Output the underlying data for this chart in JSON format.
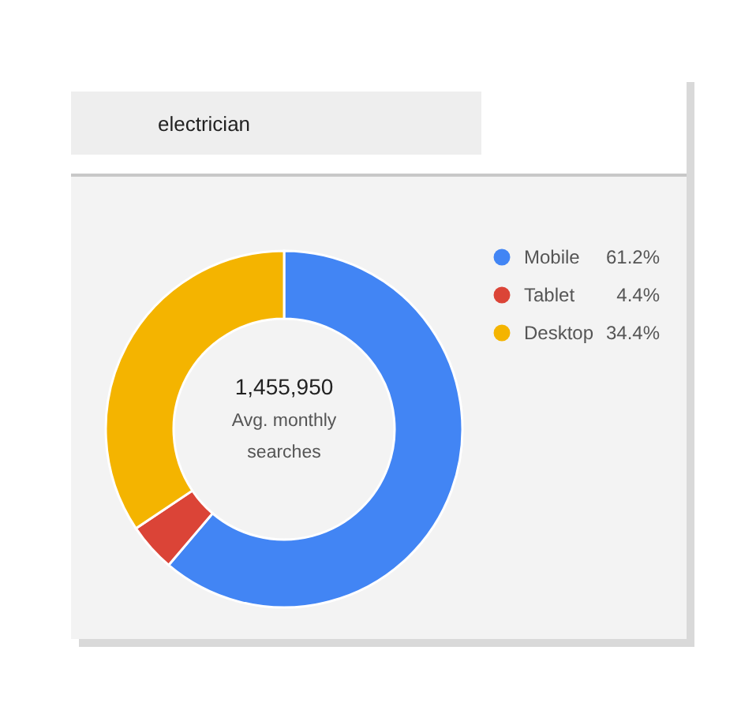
{
  "chart_data": {
    "type": "donut",
    "categories": [
      "Mobile",
      "Tablet",
      "Desktop"
    ],
    "values": [
      61.2,
      4.4,
      34.4
    ],
    "colors": [
      "#4285f4",
      "#db4437",
      "#f4b400"
    ],
    "value_labels": [
      "61.2%",
      "4.4%",
      "34.4%"
    ],
    "legend": "right",
    "annotations": [
      "electrician",
      "1,455,950",
      "Avg. monthly\nsearches"
    ]
  }
}
